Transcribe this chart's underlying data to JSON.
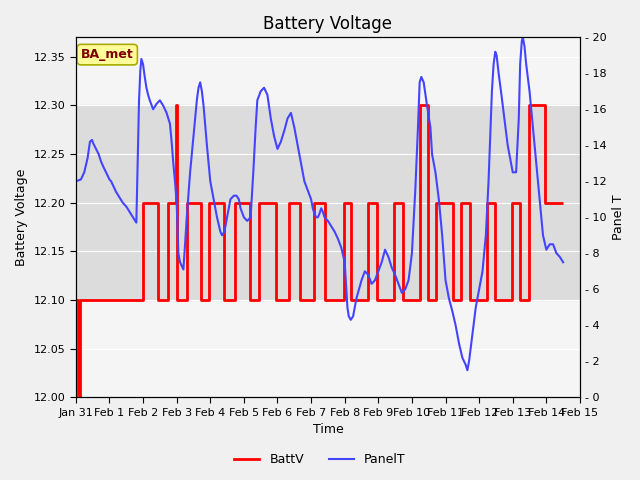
{
  "title": "Battery Voltage",
  "xlabel": "Time",
  "ylabel_left": "Battery Voltage",
  "ylabel_right": "Panel T",
  "ylim_left": [
    12.0,
    12.37
  ],
  "ylim_right": [
    0,
    20
  ],
  "title_fontsize": 12,
  "label_fontsize": 9,
  "tick_fontsize": 8,
  "annotation_text": "BA_met",
  "annotation_bg": "#ffff99",
  "annotation_border": "#aaaa00",
  "annotation_text_color": "#800000",
  "batt_color": "#ff0000",
  "panel_color": "#4444ff",
  "batt_linewidth": 2.0,
  "panel_linewidth": 1.5,
  "legend_batt": "BattV",
  "legend_panel": "PanelT",
  "batt_data": [
    [
      0.0,
      12.1
    ],
    [
      0.05,
      12.1
    ],
    [
      0.05,
      12.0
    ],
    [
      0.12,
      12.0
    ],
    [
      0.12,
      12.1
    ],
    [
      2.0,
      12.1
    ],
    [
      2.0,
      12.2
    ],
    [
      2.45,
      12.2
    ],
    [
      2.45,
      12.1
    ],
    [
      2.75,
      12.1
    ],
    [
      2.75,
      12.2
    ],
    [
      2.98,
      12.2
    ],
    [
      2.98,
      12.3
    ],
    [
      3.02,
      12.3
    ],
    [
      3.02,
      12.1
    ],
    [
      3.3,
      12.1
    ],
    [
      3.3,
      12.2
    ],
    [
      3.72,
      12.2
    ],
    [
      3.72,
      12.1
    ],
    [
      3.95,
      12.1
    ],
    [
      3.95,
      12.2
    ],
    [
      4.42,
      12.2
    ],
    [
      4.42,
      12.1
    ],
    [
      4.73,
      12.1
    ],
    [
      4.73,
      12.2
    ],
    [
      5.18,
      12.2
    ],
    [
      5.18,
      12.1
    ],
    [
      5.45,
      12.1
    ],
    [
      5.45,
      12.2
    ],
    [
      5.97,
      12.2
    ],
    [
      5.97,
      12.1
    ],
    [
      6.35,
      12.1
    ],
    [
      6.35,
      12.2
    ],
    [
      6.68,
      12.2
    ],
    [
      6.68,
      12.1
    ],
    [
      7.08,
      12.1
    ],
    [
      7.08,
      12.2
    ],
    [
      7.42,
      12.2
    ],
    [
      7.42,
      12.1
    ],
    [
      7.97,
      12.1
    ],
    [
      7.97,
      12.2
    ],
    [
      8.18,
      12.2
    ],
    [
      8.18,
      12.1
    ],
    [
      8.68,
      12.1
    ],
    [
      8.68,
      12.2
    ],
    [
      8.97,
      12.2
    ],
    [
      8.97,
      12.1
    ],
    [
      9.47,
      12.1
    ],
    [
      9.47,
      12.2
    ],
    [
      9.72,
      12.2
    ],
    [
      9.72,
      12.1
    ],
    [
      10.23,
      12.1
    ],
    [
      10.23,
      12.3
    ],
    [
      10.47,
      12.3
    ],
    [
      10.47,
      12.1
    ],
    [
      10.72,
      12.1
    ],
    [
      10.72,
      12.2
    ],
    [
      11.23,
      12.2
    ],
    [
      11.23,
      12.1
    ],
    [
      11.47,
      12.1
    ],
    [
      11.47,
      12.2
    ],
    [
      11.72,
      12.2
    ],
    [
      11.72,
      12.1
    ],
    [
      12.22,
      12.1
    ],
    [
      12.22,
      12.2
    ],
    [
      12.47,
      12.2
    ],
    [
      12.47,
      12.1
    ],
    [
      12.97,
      12.1
    ],
    [
      12.97,
      12.2
    ],
    [
      13.22,
      12.2
    ],
    [
      13.22,
      12.1
    ],
    [
      13.47,
      12.1
    ],
    [
      13.47,
      12.3
    ],
    [
      13.97,
      12.3
    ],
    [
      13.97,
      12.2
    ],
    [
      14.5,
      12.2
    ]
  ],
  "panel_data": [
    [
      0.0,
      12.0
    ],
    [
      0.15,
      12.1
    ],
    [
      0.25,
      12.5
    ],
    [
      0.35,
      13.3
    ],
    [
      0.42,
      14.2
    ],
    [
      0.48,
      14.3
    ],
    [
      0.52,
      14.1
    ],
    [
      0.6,
      13.8
    ],
    [
      0.68,
      13.5
    ],
    [
      0.75,
      13.1
    ],
    [
      0.82,
      12.8
    ],
    [
      0.9,
      12.5
    ],
    [
      0.95,
      12.3
    ],
    [
      1.0,
      12.1
    ],
    [
      1.05,
      12.0
    ],
    [
      1.1,
      11.8
    ],
    [
      1.2,
      11.4
    ],
    [
      1.3,
      11.1
    ],
    [
      1.4,
      10.8
    ],
    [
      1.5,
      10.6
    ],
    [
      1.6,
      10.3
    ],
    [
      1.7,
      10.0
    ],
    [
      1.8,
      9.7
    ],
    [
      1.85,
      14.0
    ],
    [
      1.88,
      16.5
    ],
    [
      1.92,
      18.2
    ],
    [
      1.95,
      18.8
    ],
    [
      2.0,
      18.5
    ],
    [
      2.05,
      17.8
    ],
    [
      2.1,
      17.2
    ],
    [
      2.15,
      16.8
    ],
    [
      2.2,
      16.5
    ],
    [
      2.3,
      16.0
    ],
    [
      2.4,
      16.3
    ],
    [
      2.5,
      16.5
    ],
    [
      2.6,
      16.2
    ],
    [
      2.7,
      15.8
    ],
    [
      2.8,
      15.2
    ],
    [
      2.85,
      14.2
    ],
    [
      2.9,
      13.0
    ],
    [
      2.95,
      12.0
    ],
    [
      3.0,
      10.8
    ],
    [
      3.05,
      8.0
    ],
    [
      3.1,
      7.5
    ],
    [
      3.15,
      7.3
    ],
    [
      3.2,
      7.1
    ],
    [
      3.25,
      8.5
    ],
    [
      3.3,
      10.0
    ],
    [
      3.4,
      12.5
    ],
    [
      3.5,
      14.5
    ],
    [
      3.6,
      16.5
    ],
    [
      3.65,
      17.2
    ],
    [
      3.7,
      17.5
    ],
    [
      3.75,
      17.0
    ],
    [
      3.8,
      16.2
    ],
    [
      3.9,
      14.0
    ],
    [
      4.0,
      12.0
    ],
    [
      4.1,
      11.0
    ],
    [
      4.2,
      10.0
    ],
    [
      4.3,
      9.2
    ],
    [
      4.35,
      9.0
    ],
    [
      4.42,
      9.2
    ],
    [
      4.5,
      10.0
    ],
    [
      4.6,
      11.0
    ],
    [
      4.7,
      11.2
    ],
    [
      4.78,
      11.2
    ],
    [
      4.85,
      11.0
    ],
    [
      4.9,
      10.5
    ],
    [
      5.0,
      10.0
    ],
    [
      5.1,
      9.8
    ],
    [
      5.2,
      10.0
    ],
    [
      5.28,
      12.5
    ],
    [
      5.35,
      15.0
    ],
    [
      5.4,
      16.5
    ],
    [
      5.5,
      17.0
    ],
    [
      5.6,
      17.2
    ],
    [
      5.7,
      16.8
    ],
    [
      5.8,
      15.5
    ],
    [
      5.9,
      14.5
    ],
    [
      6.0,
      13.8
    ],
    [
      6.1,
      14.2
    ],
    [
      6.2,
      14.8
    ],
    [
      6.3,
      15.5
    ],
    [
      6.4,
      15.8
    ],
    [
      6.5,
      15.0
    ],
    [
      6.6,
      14.0
    ],
    [
      6.7,
      13.0
    ],
    [
      6.8,
      12.0
    ],
    [
      6.9,
      11.5
    ],
    [
      7.0,
      11.0
    ],
    [
      7.05,
      10.5
    ],
    [
      7.1,
      10.2
    ],
    [
      7.15,
      10.0
    ],
    [
      7.2,
      10.0
    ],
    [
      7.25,
      10.2
    ],
    [
      7.3,
      10.5
    ],
    [
      7.35,
      10.3
    ],
    [
      7.4,
      10.0
    ],
    [
      7.5,
      9.8
    ],
    [
      7.6,
      9.5
    ],
    [
      7.7,
      9.2
    ],
    [
      7.8,
      8.8
    ],
    [
      7.9,
      8.3
    ],
    [
      8.0,
      7.5
    ],
    [
      8.08,
      5.0
    ],
    [
      8.12,
      4.5
    ],
    [
      8.18,
      4.3
    ],
    [
      8.25,
      4.5
    ],
    [
      8.35,
      5.5
    ],
    [
      8.5,
      6.5
    ],
    [
      8.6,
      7.0
    ],
    [
      8.7,
      6.8
    ],
    [
      8.8,
      6.3
    ],
    [
      8.9,
      6.5
    ],
    [
      9.0,
      7.0
    ],
    [
      9.1,
      7.5
    ],
    [
      9.2,
      8.2
    ],
    [
      9.3,
      7.8
    ],
    [
      9.4,
      7.2
    ],
    [
      9.5,
      6.8
    ],
    [
      9.6,
      6.3
    ],
    [
      9.7,
      5.8
    ],
    [
      9.8,
      6.0
    ],
    [
      9.9,
      6.5
    ],
    [
      10.0,
      8.0
    ],
    [
      10.1,
      11.5
    ],
    [
      10.18,
      15.0
    ],
    [
      10.23,
      17.5
    ],
    [
      10.28,
      17.8
    ],
    [
      10.35,
      17.5
    ],
    [
      10.45,
      16.2
    ],
    [
      10.55,
      15.0
    ],
    [
      10.6,
      13.5
    ],
    [
      10.7,
      12.5
    ],
    [
      10.8,
      11.0
    ],
    [
      10.9,
      9.0
    ],
    [
      11.0,
      6.5
    ],
    [
      11.05,
      6.0
    ],
    [
      11.1,
      5.5
    ],
    [
      11.2,
      4.8
    ],
    [
      11.3,
      4.0
    ],
    [
      11.4,
      3.0
    ],
    [
      11.5,
      2.2
    ],
    [
      11.6,
      1.8
    ],
    [
      11.65,
      1.5
    ],
    [
      11.7,
      2.0
    ],
    [
      11.8,
      3.5
    ],
    [
      11.9,
      5.0
    ],
    [
      12.0,
      6.0
    ],
    [
      12.1,
      7.0
    ],
    [
      12.2,
      9.0
    ],
    [
      12.28,
      12.0
    ],
    [
      12.33,
      14.5
    ],
    [
      12.38,
      17.0
    ],
    [
      12.43,
      18.5
    ],
    [
      12.48,
      19.2
    ],
    [
      12.52,
      19.0
    ],
    [
      12.58,
      18.0
    ],
    [
      12.65,
      17.0
    ],
    [
      12.75,
      15.5
    ],
    [
      12.85,
      14.0
    ],
    [
      12.95,
      13.0
    ],
    [
      13.0,
      12.5
    ],
    [
      13.1,
      12.5
    ],
    [
      13.18,
      15.5
    ],
    [
      13.22,
      18.5
    ],
    [
      13.27,
      19.8
    ],
    [
      13.3,
      20.0
    ],
    [
      13.35,
      19.5
    ],
    [
      13.4,
      18.5
    ],
    [
      13.5,
      17.0
    ],
    [
      13.6,
      15.0
    ],
    [
      13.7,
      13.0
    ],
    [
      13.8,
      11.0
    ],
    [
      13.9,
      9.0
    ],
    [
      14.0,
      8.2
    ],
    [
      14.1,
      8.5
    ],
    [
      14.2,
      8.5
    ],
    [
      14.3,
      8.0
    ],
    [
      14.4,
      7.8
    ],
    [
      14.5,
      7.5
    ]
  ],
  "xtick_positions": [
    0,
    1,
    2,
    3,
    4,
    5,
    6,
    7,
    8,
    9,
    10,
    11,
    12,
    13,
    14,
    15
  ],
  "xtick_labels": [
    "Jan 31",
    "Feb 1",
    "Feb 2",
    "Feb 3",
    "Feb 4",
    "Feb 5",
    "Feb 6",
    "Feb 7",
    "Feb 8",
    "Feb 9",
    "Feb 10",
    "Feb 11",
    "Feb 12",
    "Feb 13",
    "Feb 14",
    "Feb 15"
  ],
  "yticks_left": [
    12.0,
    12.05,
    12.1,
    12.15,
    12.2,
    12.25,
    12.3,
    12.35
  ],
  "yticks_right": [
    0,
    2,
    4,
    6,
    8,
    10,
    12,
    14,
    16,
    18,
    20
  ],
  "gray_band_ymin": 12.1,
  "gray_band_ymax": 12.3,
  "outer_bg": "#f0f0f0",
  "inner_bg": "#f5f5f5",
  "band_color": "#dcdcdc"
}
